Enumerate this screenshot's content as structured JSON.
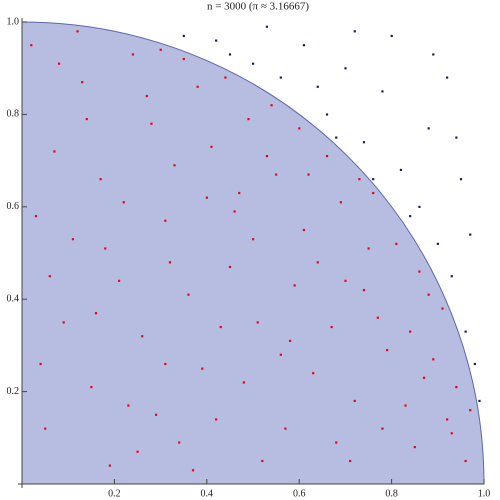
{
  "chart_data": {
    "type": "scatter",
    "title": "n = 3000 (π ≈ 3.16667)",
    "xlim": [
      0,
      1
    ],
    "ylim": [
      0,
      1
    ],
    "xticks": [
      0.2,
      0.4,
      0.6,
      0.8,
      {
        "value": 1,
        "label": "1.0"
      }
    ],
    "yticks": [
      0.2,
      0.4,
      0.6,
      0.8,
      {
        "value": 1,
        "label": "1.0"
      }
    ],
    "region_color": "#b6bde0",
    "region_stroke": "#5d66ab",
    "series": [
      {
        "color": "#e3061b",
        "x": [
          0.05,
          0.13,
          0.21,
          0.34,
          0.47,
          0.58,
          0.66,
          0.72,
          0.81,
          0.89,
          0.93,
          0.02,
          0.17,
          0.28,
          0.39,
          0.44,
          0.52,
          0.61,
          0.74,
          0.85,
          0.09,
          0.15,
          0.24,
          0.31,
          0.36,
          0.42,
          0.49,
          0.55,
          0.63,
          0.69,
          0.77,
          0.83,
          0.91,
          0.96,
          0.07,
          0.11,
          0.19,
          0.26,
          0.33,
          0.38,
          0.45,
          0.51,
          0.57,
          0.64,
          0.71,
          0.76,
          0.86,
          0.94,
          0.03,
          0.12,
          0.22,
          0.29,
          0.35,
          0.41,
          0.48,
          0.54,
          0.59,
          0.67,
          0.73,
          0.79,
          0.88,
          0.04,
          0.14,
          0.23,
          0.32,
          0.37,
          0.46,
          0.53,
          0.62,
          0.68,
          0.75,
          0.84,
          0.92,
          0.06,
          0.16,
          0.27,
          0.31,
          0.4,
          0.5,
          0.56,
          0.6,
          0.7,
          0.78,
          0.87,
          0.97,
          0.08,
          0.18,
          0.25,
          0.3,
          0.43
        ],
        "values": [
          0.12,
          0.87,
          0.44,
          0.09,
          0.63,
          0.31,
          0.71,
          0.18,
          0.52,
          0.27,
          0.11,
          0.95,
          0.66,
          0.78,
          0.25,
          0.88,
          0.05,
          0.55,
          0.42,
          0.08,
          0.35,
          0.21,
          0.93,
          0.57,
          0.41,
          0.14,
          0.79,
          0.67,
          0.24,
          0.61,
          0.36,
          0.17,
          0.38,
          0.05,
          0.72,
          0.53,
          0.04,
          0.32,
          0.69,
          0.86,
          0.47,
          0.35,
          0.12,
          0.48,
          0.05,
          0.63,
          0.46,
          0.21,
          0.58,
          0.98,
          0.61,
          0.15,
          0.92,
          0.73,
          0.22,
          0.82,
          0.43,
          0.34,
          0.66,
          0.29,
          0.41,
          0.26,
          0.79,
          0.17,
          0.48,
          0.03,
          0.59,
          0.71,
          0.67,
          0.09,
          0.51,
          0.33,
          0.14,
          0.45,
          0.37,
          0.84,
          0.26,
          0.62,
          0.53,
          0.28,
          0.77,
          0.44,
          0.12,
          0.23,
          0.16,
          0.91,
          0.51,
          0.07,
          0.94,
          0.34
        ]
      },
      {
        "color": "#1b1b6b",
        "x": [
          0.35,
          0.42,
          0.5,
          0.56,
          0.61,
          0.66,
          0.7,
          0.74,
          0.78,
          0.82,
          0.86,
          0.9,
          0.93,
          0.96,
          0.98,
          0.88,
          0.95,
          0.99,
          0.64,
          0.8,
          0.92,
          0.72,
          0.84,
          0.97,
          0.53,
          0.45,
          0.76,
          0.89,
          0.94,
          0.68
        ],
        "values": [
          0.97,
          0.96,
          0.91,
          0.88,
          0.95,
          0.8,
          0.9,
          0.74,
          0.85,
          0.68,
          0.6,
          0.52,
          0.45,
          0.33,
          0.26,
          0.77,
          0.66,
          0.18,
          0.86,
          0.97,
          0.88,
          0.98,
          0.58,
          0.54,
          0.99,
          0.93,
          0.66,
          0.93,
          0.75,
          0.75
        ]
      }
    ]
  }
}
